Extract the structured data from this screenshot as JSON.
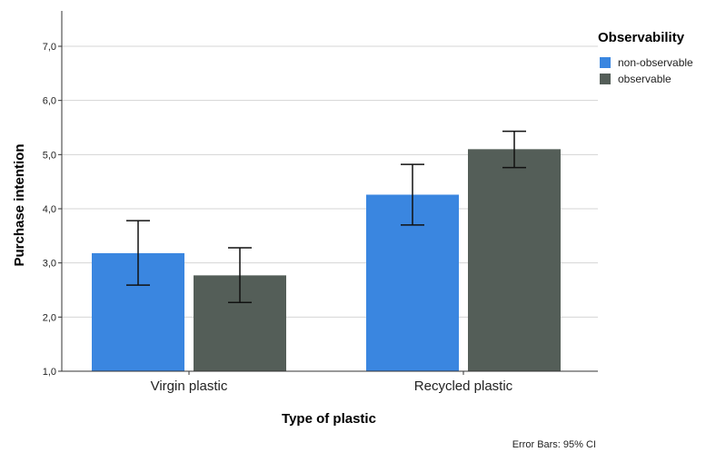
{
  "chart_data": {
    "type": "bar",
    "title": "",
    "xlabel": "Type of plastic",
    "ylabel": "Purchase intention",
    "categories": [
      "Virgin plastic",
      "Recycled plastic"
    ],
    "ylim": [
      1.0,
      7.0
    ],
    "yticks": [
      "1,0",
      "2,0",
      "3,0",
      "4,0",
      "5,0",
      "6,0",
      "7,0"
    ],
    "grid": true,
    "legend": {
      "title": "Observability",
      "position": "top-right"
    },
    "series": [
      {
        "name": "non-observable",
        "color": "#3a86e0",
        "values": [
          3.18,
          4.26
        ],
        "ci_low": [
          2.59,
          3.7
        ],
        "ci_high": [
          3.78,
          4.82
        ]
      },
      {
        "name": "observable",
        "color": "#545e58",
        "values": [
          2.77,
          5.1
        ],
        "ci_low": [
          2.27,
          4.76
        ],
        "ci_high": [
          3.28,
          5.43
        ]
      }
    ],
    "footnote": "Error Bars: 95% CI"
  }
}
